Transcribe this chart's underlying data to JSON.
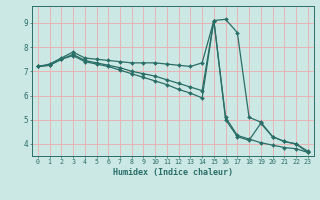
{
  "xlabel": "Humidex (Indice chaleur)",
  "bg_color": "#cce8e4",
  "grid_color": "#e8b4b4",
  "line_color": "#2a6e68",
  "xlim": [
    -0.5,
    23.5
  ],
  "ylim": [
    3.5,
    9.7
  ],
  "xticks": [
    0,
    1,
    2,
    3,
    4,
    5,
    6,
    7,
    8,
    9,
    10,
    11,
    12,
    13,
    14,
    15,
    16,
    17,
    18,
    19,
    20,
    21,
    22,
    23
  ],
  "yticks": [
    4,
    5,
    6,
    7,
    8,
    9
  ],
  "curve1_x": [
    0,
    1,
    2,
    3,
    4,
    5,
    6,
    7,
    8,
    9,
    10,
    11,
    12,
    13,
    14,
    15,
    16,
    17,
    18,
    19,
    20,
    21,
    22,
    23
  ],
  "curve1_y": [
    7.2,
    7.3,
    7.55,
    7.8,
    7.55,
    7.5,
    7.45,
    7.4,
    7.35,
    7.35,
    7.35,
    7.3,
    7.25,
    7.2,
    7.35,
    9.1,
    9.15,
    8.6,
    5.1,
    4.9,
    4.3,
    4.1,
    4.0,
    3.7
  ],
  "curve2_x": [
    0,
    1,
    2,
    3,
    4,
    5,
    6,
    7,
    8,
    9,
    10,
    11,
    12,
    13,
    14,
    15,
    16,
    17,
    18,
    19,
    20,
    21,
    22,
    23
  ],
  "curve2_y": [
    7.2,
    7.25,
    7.5,
    7.7,
    7.45,
    7.35,
    7.25,
    7.15,
    7.0,
    6.9,
    6.8,
    6.65,
    6.5,
    6.35,
    6.2,
    9.1,
    5.1,
    4.35,
    4.2,
    4.05,
    3.95,
    3.85,
    3.8,
    3.65
  ],
  "curve3_x": [
    0,
    1,
    2,
    3,
    4,
    5,
    6,
    7,
    8,
    9,
    10,
    11,
    12,
    13,
    14,
    15,
    16,
    17,
    18,
    19,
    20,
    21,
    22,
    23
  ],
  "curve3_y": [
    7.2,
    7.25,
    7.5,
    7.65,
    7.4,
    7.3,
    7.2,
    7.05,
    6.9,
    6.75,
    6.6,
    6.45,
    6.25,
    6.1,
    5.9,
    9.1,
    5.0,
    4.3,
    4.15,
    4.85,
    4.3,
    4.1,
    4.0,
    3.65
  ]
}
